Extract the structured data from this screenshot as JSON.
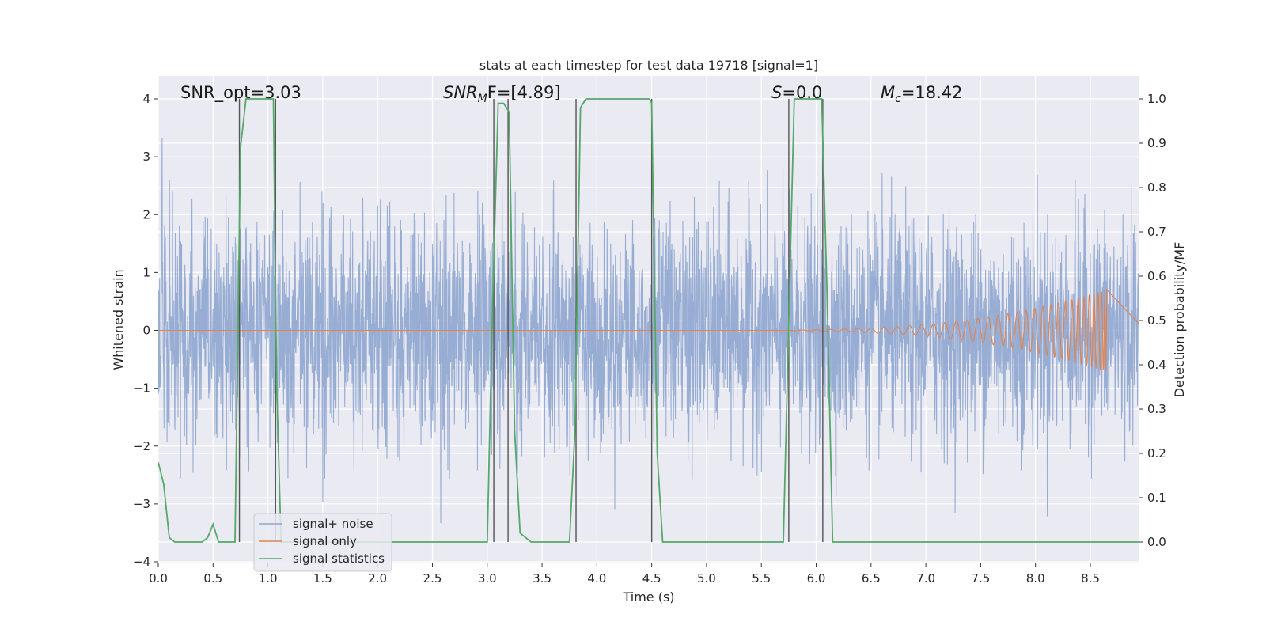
{
  "chart_data": {
    "type": "line",
    "title": "stats at each timestep for test data 19718 [signal=1]",
    "xlabel": "Time (s)",
    "ylabel": "Whitened strain",
    "y2label": "Detection probability/MF",
    "xlim": [
      0.0,
      9.0
    ],
    "ylim": [
      -4.0,
      4.0
    ],
    "y2lim": [
      0.0,
      1.0
    ],
    "x_ticks": [
      "0.0",
      "0.5",
      "1.0",
      "1.5",
      "2.0",
      "2.5",
      "3.0",
      "3.5",
      "4.0",
      "4.5",
      "5.0",
      "5.5",
      "6.0",
      "6.5",
      "7.0",
      "7.5",
      "8.0",
      "8.5"
    ],
    "y_ticks": [
      "4",
      "3",
      "2",
      "1",
      "0",
      "−1",
      "−2",
      "−3",
      "−4"
    ],
    "y2_ticks": [
      "1.0",
      "0.9",
      "0.8",
      "0.7",
      "0.6",
      "0.5",
      "0.4",
      "0.3",
      "0.2",
      "0.1",
      "0.0"
    ],
    "grid": true,
    "legend_position": "lower-left",
    "colors": {
      "noise": "#8fa6cf",
      "signal": "#dd8452",
      "stats": "#55a868",
      "vlines": "#555555",
      "background": "#eaeaf2",
      "grid": "#ffffff"
    },
    "annotations": [
      {
        "key": "snr_opt",
        "text": "SNR_opt=3.03"
      },
      {
        "key": "snr_mf",
        "text": "SNR",
        "sub": "M",
        "after": "F=[4.89]"
      },
      {
        "key": "s",
        "text": "S",
        "after": "=0.0"
      },
      {
        "key": "mc",
        "text": "M",
        "sub": "c",
        "after": "=18.42"
      }
    ],
    "series": [
      {
        "name": "signal+ noise",
        "note": "noisy whitened strain, envelope about ±1.5 with spikes up to ±3.6"
      },
      {
        "name": "signal only",
        "note": "chirp growing from ~0 near t=5.5 to amplitude ~0.7 at t=8.65"
      },
      {
        "name": "signal statistics",
        "axis": "right",
        "x": [
          0.0,
          0.05,
          0.1,
          0.15,
          0.25,
          0.35,
          0.4,
          0.45,
          0.5,
          0.55,
          0.6,
          0.65,
          0.7,
          0.75,
          0.8,
          0.85,
          0.9,
          0.95,
          1.0,
          1.05,
          1.08,
          1.12,
          1.2,
          1.4,
          1.6,
          1.8,
          2.0,
          2.2,
          2.4,
          2.6,
          2.8,
          2.95,
          3.0,
          3.05,
          3.1,
          3.15,
          3.2,
          3.25,
          3.3,
          3.4,
          3.5,
          3.55,
          3.6,
          3.7,
          3.75,
          3.8,
          3.85,
          3.9,
          4.0,
          4.2,
          4.4,
          4.48,
          4.5,
          4.55,
          4.6,
          4.8,
          5.0,
          5.2,
          5.4,
          5.6,
          5.7,
          5.75,
          5.8,
          5.85,
          6.0,
          6.05,
          6.1,
          6.15,
          6.2,
          6.5,
          7.0,
          7.5,
          8.0,
          8.5,
          9.0
        ],
        "values": [
          0.18,
          0.13,
          0.01,
          0.0,
          0.0,
          0.0,
          0.0,
          0.01,
          0.04,
          0.0,
          0.0,
          0.0,
          0.0,
          0.89,
          1.0,
          1.0,
          1.0,
          1.0,
          1.0,
          1.0,
          0.35,
          0.0,
          0.0,
          0.0,
          0.0,
          0.0,
          0.0,
          0.0,
          0.0,
          0.0,
          0.0,
          0.0,
          0.0,
          0.55,
          0.99,
          0.99,
          0.97,
          0.25,
          0.02,
          0.0,
          0.0,
          0.0,
          0.0,
          0.0,
          0.0,
          0.25,
          0.98,
          1.0,
          1.0,
          1.0,
          1.0,
          1.0,
          0.99,
          0.2,
          0.0,
          0.0,
          0.0,
          0.0,
          0.0,
          0.0,
          0.0,
          0.5,
          1.0,
          1.0,
          1.0,
          1.0,
          0.55,
          0.0,
          0.0,
          0.0,
          0.0,
          0.0,
          0.0,
          0.0,
          0.0
        ]
      }
    ],
    "vertical_lines_x": [
      0.74,
      1.07,
      3.06,
      3.19,
      3.81,
      4.5,
      5.75,
      6.06
    ]
  }
}
